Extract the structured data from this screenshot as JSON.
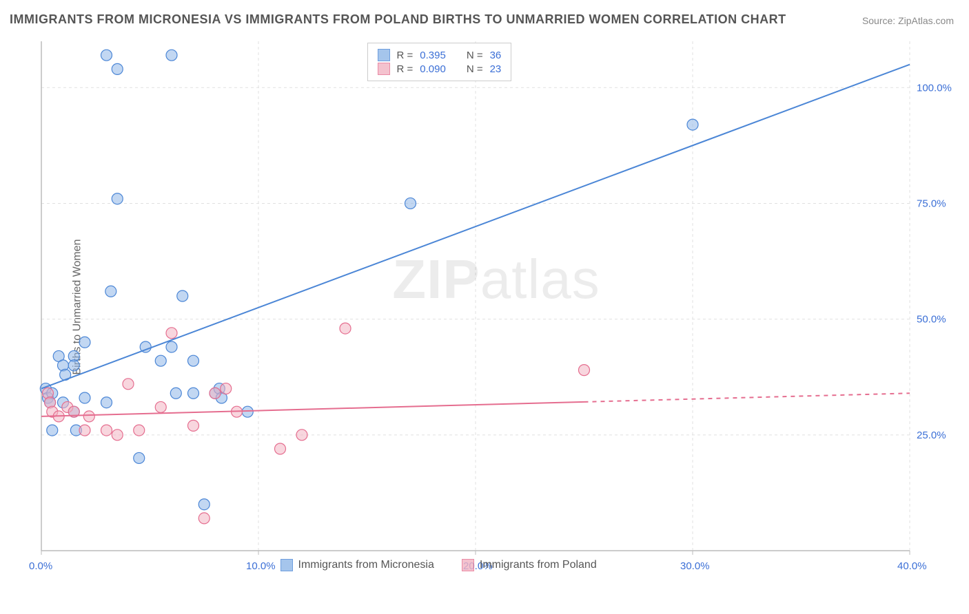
{
  "title": "IMMIGRANTS FROM MICRONESIA VS IMMIGRANTS FROM POLAND BIRTHS TO UNMARRIED WOMEN CORRELATION CHART",
  "source": "Source: ZipAtlas.com",
  "ylabel": "Births to Unmarried Women",
  "watermark_bold": "ZIP",
  "watermark_rest": "atlas",
  "chart": {
    "type": "scatter",
    "xlim": [
      0,
      40
    ],
    "ylim": [
      0,
      110
    ],
    "xtick_step": 10,
    "xtick_labels": [
      "0.0%",
      "10.0%",
      "20.0%",
      "30.0%",
      "40.0%"
    ],
    "ytick_values": [
      25,
      50,
      75,
      100
    ],
    "ytick_labels": [
      "25.0%",
      "50.0%",
      "75.0%",
      "100.0%"
    ],
    "grid_color": "#e0e0e0",
    "axis_color": "#bbbbbb",
    "background_color": "#ffffff",
    "xlabel_color": "#3b6fd6",
    "ylabel_color": "#3b6fd6",
    "marker_radius": 8,
    "marker_opacity": 0.55,
    "line_width": 2,
    "series": [
      {
        "name": "Immigrants from Micronesia",
        "color_fill": "#8fb7e8",
        "color_stroke": "#4b86d6",
        "r_value": "0.395",
        "n_value": "36",
        "trend": {
          "x1": 0,
          "y1": 35,
          "x2": 40,
          "y2": 105,
          "dash_from_x": null
        },
        "points": [
          [
            0.2,
            35
          ],
          [
            0.3,
            33
          ],
          [
            0.4,
            32
          ],
          [
            0.5,
            34
          ],
          [
            0.5,
            26
          ],
          [
            0.8,
            42
          ],
          [
            1.0,
            40
          ],
          [
            1.1,
            38
          ],
          [
            1.0,
            32
          ],
          [
            1.5,
            42
          ],
          [
            1.5,
            40
          ],
          [
            1.6,
            26
          ],
          [
            1.5,
            30
          ],
          [
            2.0,
            45
          ],
          [
            2.0,
            33
          ],
          [
            3.0,
            107
          ],
          [
            3.2,
            56
          ],
          [
            3.5,
            76
          ],
          [
            3.5,
            104
          ],
          [
            3.0,
            32
          ],
          [
            4.5,
            20
          ],
          [
            4.8,
            44
          ],
          [
            5.5,
            41
          ],
          [
            6.0,
            107
          ],
          [
            6.0,
            44
          ],
          [
            6.2,
            34
          ],
          [
            6.5,
            55
          ],
          [
            7.0,
            41
          ],
          [
            7.5,
            10
          ],
          [
            7.0,
            34
          ],
          [
            8.0,
            34
          ],
          [
            8.2,
            35
          ],
          [
            8.3,
            33
          ],
          [
            9.5,
            30
          ],
          [
            17.0,
            75
          ],
          [
            30.0,
            92
          ]
        ]
      },
      {
        "name": "Immigrants from Poland",
        "color_fill": "#f2b4c3",
        "color_stroke": "#e56d8f",
        "r_value": "0.090",
        "n_value": "23",
        "trend": {
          "x1": 0,
          "y1": 29,
          "x2": 40,
          "y2": 34,
          "dash_from_x": 25
        },
        "points": [
          [
            0.3,
            34
          ],
          [
            0.4,
            32
          ],
          [
            0.5,
            30
          ],
          [
            0.8,
            29
          ],
          [
            1.2,
            31
          ],
          [
            1.5,
            30
          ],
          [
            2.0,
            26
          ],
          [
            2.2,
            29
          ],
          [
            3.0,
            26
          ],
          [
            3.5,
            25
          ],
          [
            4.0,
            36
          ],
          [
            4.5,
            26
          ],
          [
            5.5,
            31
          ],
          [
            6.0,
            47
          ],
          [
            7.0,
            27
          ],
          [
            7.5,
            7
          ],
          [
            8.0,
            34
          ],
          [
            8.5,
            35
          ],
          [
            9.0,
            30
          ],
          [
            11.0,
            22
          ],
          [
            12.0,
            25
          ],
          [
            14.0,
            48
          ],
          [
            25.0,
            39
          ]
        ]
      }
    ]
  },
  "legend_top": {
    "rows": [
      {
        "series": 0,
        "r_label": "R =",
        "n_label": "N ="
      },
      {
        "series": 1,
        "r_label": "R =",
        "n_label": "N ="
      }
    ]
  },
  "legend_bottom": [
    {
      "series": 0
    },
    {
      "series": 1
    }
  ]
}
